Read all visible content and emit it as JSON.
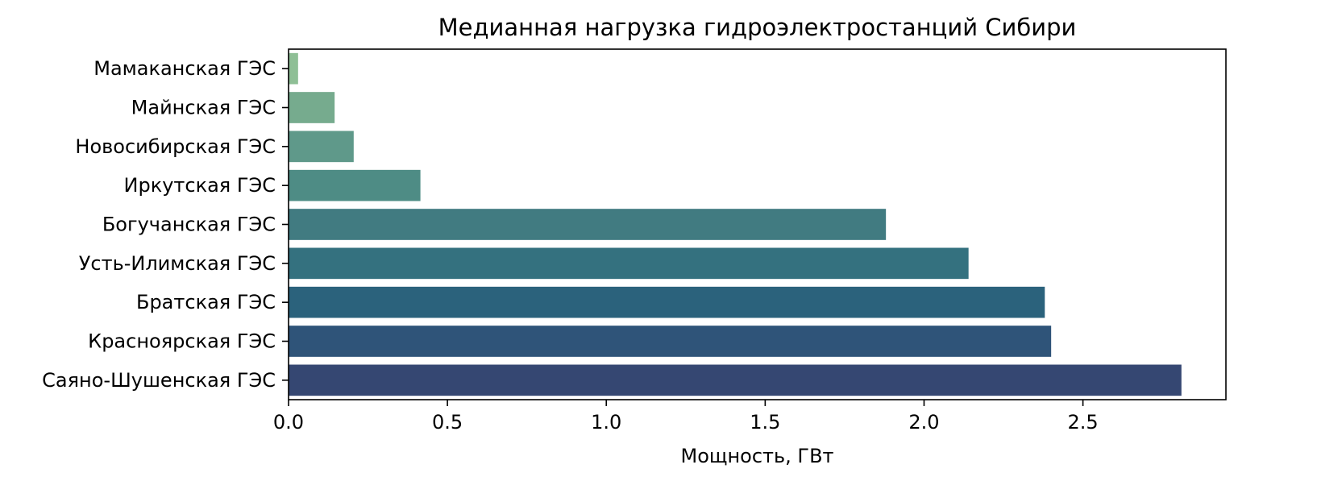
{
  "chart_data": {
    "type": "bar",
    "orientation": "horizontal",
    "title": "Медианная нагрузка гидроэлектростанций Сибири",
    "xlabel": "Мощность, ГВт",
    "ylabel": "",
    "categories": [
      "Мамаканская ГЭС",
      "Майнская ГЭС",
      "Новосибирская ГЭС",
      "Иркутская ГЭС",
      "Богучанская ГЭС",
      "Усть-Илимская ГЭС",
      "Братская ГЭС",
      "Красноярская ГЭС",
      "Саяно-Шушенская ГЭС"
    ],
    "values": [
      0.03,
      0.145,
      0.205,
      0.415,
      1.88,
      2.14,
      2.38,
      2.4,
      2.81
    ],
    "colors": [
      "#8fbf96",
      "#76ab8e",
      "#5f998a",
      "#4e8c85",
      "#417b81",
      "#34717f",
      "#2b627c",
      "#2f5479",
      "#354772"
    ],
    "xlim": [
      0,
      2.95
    ],
    "xticks": [
      "0.0",
      "0.5",
      "1.0",
      "1.5",
      "2.0",
      "2.5"
    ],
    "grid": false,
    "legend": false
  }
}
